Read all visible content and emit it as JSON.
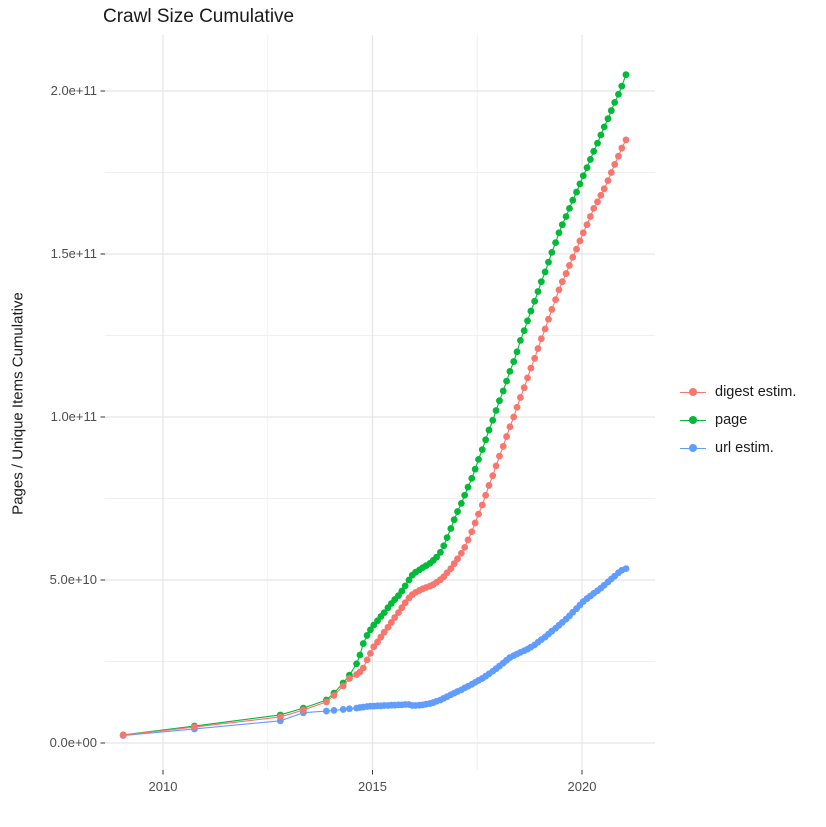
{
  "chart": {
    "title": "Crawl Size Cumulative",
    "ylabel": "Pages / Unique Items Cumulative",
    "xlabel": ""
  },
  "legend": {
    "items": [
      {
        "label": "digest estim.",
        "color": "#F8766D"
      },
      {
        "label": "page",
        "color": "#00BA38"
      },
      {
        "label": "url estim.",
        "color": "#619CFF"
      }
    ]
  },
  "colors": {
    "digest": "#F8766D",
    "page": "#00BA38",
    "url": "#619CFF",
    "grid_major": "#E5E5E5",
    "grid_minor": "#F0F0F0",
    "tick_mark": "#333333",
    "tick_text": "#4d4d4d",
    "title_text": "#1a1a1a"
  },
  "chart_data": {
    "type": "line",
    "title": "Crawl Size Cumulative",
    "xlabel": "",
    "ylabel": "Pages / Unique Items Cumulative",
    "legend_position": "right",
    "grid": "major+minor",
    "x_unit": "year",
    "y_scale_factor": 1000000000.0,
    "y_unit": "count (values below are in billions, 1e9)",
    "xlim": [
      2008.6,
      2021.75
    ],
    "ylim_billions": [
      0,
      217
    ],
    "x_ticks": [
      2010,
      2015,
      2020
    ],
    "x_tick_labels": [
      "2010",
      "2015",
      "2020"
    ],
    "x_minor_ticks": [
      2012.5,
      2017.5
    ],
    "y_ticks_billions": [
      0,
      50,
      100,
      150,
      200
    ],
    "y_tick_labels": [
      "0.0e+00",
      "5.0e+10",
      "1.0e+11",
      "1.5e+11",
      "2.0e+11"
    ],
    "y_minor_ticks_billions": [
      25,
      75,
      125,
      175
    ],
    "x": [
      2009.05,
      2010.75,
      2012.8,
      2013.35,
      2013.9,
      2014.08,
      2014.3,
      2014.45,
      2014.62,
      2014.7,
      2014.78,
      2014.87,
      2014.95,
      2015.03,
      2015.12,
      2015.2,
      2015.28,
      2015.37,
      2015.45,
      2015.53,
      2015.62,
      2015.7,
      2015.78,
      2015.87,
      2015.95,
      2016.03,
      2016.12,
      2016.2,
      2016.28,
      2016.37,
      2016.45,
      2016.53,
      2016.62,
      2016.7,
      2016.78,
      2016.87,
      2016.95,
      2017.03,
      2017.12,
      2017.2,
      2017.28,
      2017.37,
      2017.45,
      2017.53,
      2017.62,
      2017.7,
      2017.78,
      2017.87,
      2017.95,
      2018.03,
      2018.12,
      2018.2,
      2018.28,
      2018.37,
      2018.45,
      2018.53,
      2018.62,
      2018.7,
      2018.78,
      2018.87,
      2018.95,
      2019.03,
      2019.12,
      2019.2,
      2019.28,
      2019.37,
      2019.45,
      2019.53,
      2019.62,
      2019.7,
      2019.78,
      2019.87,
      2019.95,
      2020.03,
      2020.12,
      2020.2,
      2020.28,
      2020.37,
      2020.45,
      2020.53,
      2020.62,
      2020.7,
      2020.78,
      2020.87,
      2020.95,
      2021.05
    ],
    "series": [
      {
        "name": "page",
        "color": "#00BA38",
        "values_billions": [
          2.5,
          5.2,
          8.6,
          10.7,
          13.2,
          15.3,
          18.4,
          20.8,
          24.3,
          27.0,
          30.5,
          33.0,
          34.7,
          36.2,
          37.5,
          38.8,
          40.0,
          41.5,
          42.8,
          44.0,
          45.2,
          46.6,
          48.2,
          50.0,
          51.5,
          52.4,
          53.1,
          53.8,
          54.4,
          55.1,
          56.0,
          57.0,
          58.5,
          60.5,
          63.0,
          65.8,
          68.5,
          71.0,
          73.5,
          76.0,
          78.5,
          81.2,
          84.0,
          87.0,
          90.0,
          93.0,
          96.0,
          99.0,
          102.0,
          105.0,
          108.0,
          111.0,
          114.0,
          117.0,
          120.0,
          123.5,
          126.5,
          129.5,
          132.5,
          135.5,
          138.5,
          141.5,
          144.5,
          147.5,
          150.5,
          153.5,
          156.5,
          159.0,
          161.5,
          164.0,
          166.5,
          169.0,
          171.5,
          174.0,
          176.5,
          179.0,
          181.5,
          184.0,
          186.5,
          189.0,
          191.5,
          194.0,
          196.5,
          199.0,
          201.5,
          205.0
        ]
      },
      {
        "name": "url estim.",
        "color": "#619CFF",
        "values_billions": [
          2.3,
          4.3,
          6.8,
          9.3,
          9.8,
          10.0,
          10.3,
          10.5,
          10.7,
          10.9,
          11.0,
          11.2,
          11.3,
          11.3,
          11.4,
          11.4,
          11.5,
          11.5,
          11.6,
          11.6,
          11.7,
          11.7,
          11.8,
          11.8,
          11.5,
          11.5,
          11.6,
          11.7,
          11.9,
          12.1,
          12.4,
          12.8,
          13.2,
          13.7,
          14.2,
          14.8,
          15.3,
          15.8,
          16.3,
          16.9,
          17.4,
          18.0,
          18.6,
          19.2,
          19.8,
          20.5,
          21.2,
          22.0,
          22.8,
          23.6,
          24.5,
          25.4,
          26.2,
          26.8,
          27.3,
          27.8,
          28.3,
          28.8,
          29.4,
          30.1,
          30.9,
          31.7,
          32.5,
          33.4,
          34.3,
          35.2,
          36.1,
          37.0,
          38.0,
          39.0,
          40.1,
          41.2,
          42.3,
          43.4,
          44.3,
          45.1,
          45.9,
          46.7,
          47.5,
          48.4,
          49.4,
          50.3,
          51.2,
          52.2,
          53.0,
          53.5
        ]
      },
      {
        "name": "digest estim.",
        "color": "#F8766D",
        "values_billions": [
          2.4,
          4.9,
          8.0,
          10.1,
          12.6,
          14.6,
          17.5,
          19.8,
          21.0,
          21.8,
          23.0,
          25.5,
          27.5,
          29.5,
          31.0,
          32.5,
          34.0,
          35.5,
          37.0,
          38.5,
          40.0,
          41.5,
          43.0,
          44.5,
          45.5,
          46.2,
          46.8,
          47.3,
          47.7,
          48.1,
          48.6,
          49.3,
          50.1,
          51.0,
          52.2,
          53.5,
          55.0,
          56.5,
          58.2,
          60.0,
          62.3,
          64.8,
          67.5,
          70.2,
          73.0,
          76.0,
          79.0,
          82.0,
          85.0,
          88.0,
          91.0,
          94.0,
          97.0,
          100.0,
          103.0,
          106.0,
          109.0,
          112.0,
          115.0,
          118.0,
          121.0,
          124.0,
          127.0,
          130.0,
          133.0,
          136.0,
          139.0,
          141.5,
          144.0,
          146.5,
          149.0,
          151.5,
          154.0,
          156.5,
          159.0,
          161.5,
          164.0,
          166.0,
          168.0,
          170.0,
          172.5,
          175.0,
          177.5,
          180.0,
          182.5,
          185.0
        ]
      }
    ]
  }
}
